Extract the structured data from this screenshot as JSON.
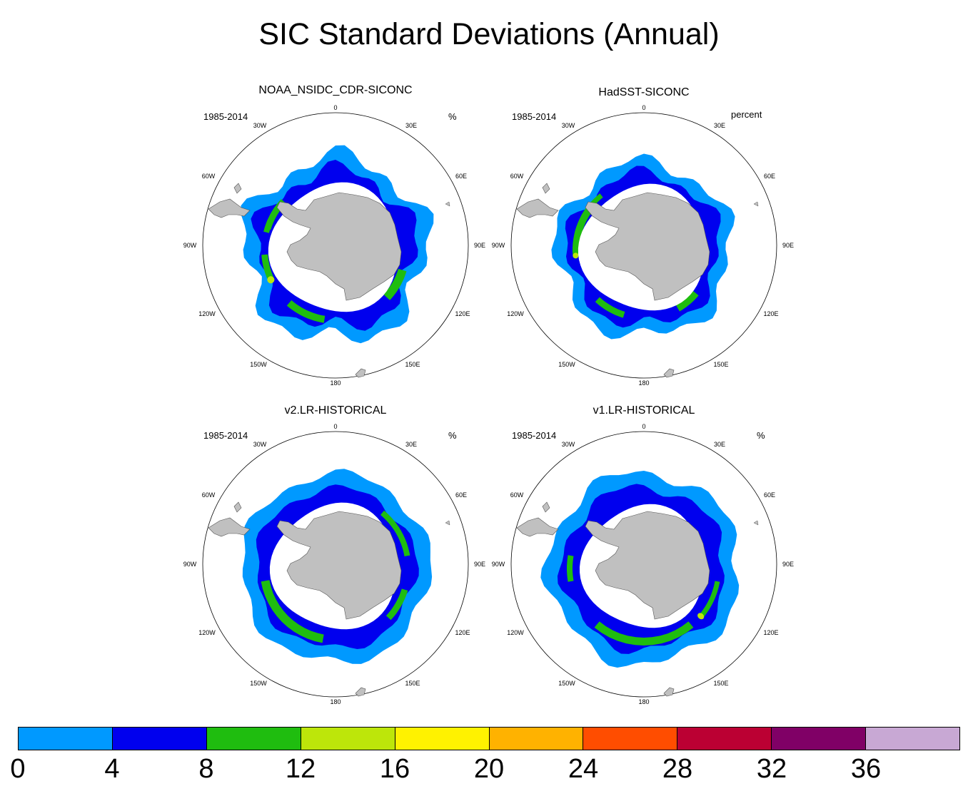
{
  "figure": {
    "title": "SIC Standard Deviations (Annual)"
  },
  "panels": [
    {
      "id": "noaa",
      "title": "NOAA_NSIDC_CDR-SICONC",
      "period": "1985-2014",
      "units": "%"
    },
    {
      "id": "hadsst",
      "title": "HadSST-SICONC",
      "period": "1985-2014",
      "units": "percent"
    },
    {
      "id": "v2",
      "title": "v2.LR-HISTORICAL",
      "period": "1985-2014",
      "units": "%"
    },
    {
      "id": "v1",
      "title": "v1.LR-HISTORICAL",
      "period": "1985-2014",
      "units": "%"
    }
  ],
  "map": {
    "projection": "south polar stereographic",
    "lon_labels": [
      "0",
      "30E",
      "60E",
      "90E",
      "120E",
      "150E",
      "180",
      "150W",
      "120W",
      "90W",
      "60W",
      "30W"
    ],
    "land_color": "#c0c0c0",
    "ocean_color": "#ffffff"
  },
  "colorbar": {
    "ticks": [
      "0",
      "4",
      "8",
      "12",
      "16",
      "20",
      "24",
      "28",
      "32",
      "36"
    ],
    "colors": [
      "#0099ff",
      "#0000ee",
      "#1fbd0f",
      "#bde60a",
      "#fff200",
      "#ffb200",
      "#ff4d00",
      "#bb0033",
      "#800066",
      "#c8a8d4"
    ]
  }
}
